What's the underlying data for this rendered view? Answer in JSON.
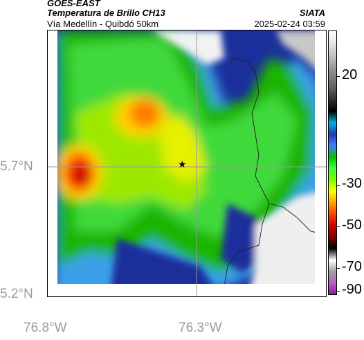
{
  "header": {
    "satellite": "GOES-EAST",
    "product": "Temperatura de Brillo CH13",
    "route": "Vía Medellín - Quibdó 50km",
    "agency": "SIATA",
    "datetime": "2025-02-24 03:59"
  },
  "axes": {
    "y_ticks": [
      "5.7°N",
      "5.2°N"
    ],
    "x_ticks": [
      "76.8°W",
      "76.3°W"
    ]
  },
  "colorbar": {
    "ticks": [
      "20",
      "-30",
      "-50",
      "-70",
      "-90"
    ],
    "stops": [
      "#ffffff",
      "#e8e8e8",
      "#c8c8c8",
      "#a0a0a0",
      "#808080",
      "#606060",
      "#303030",
      "#000000",
      "#00b0e0",
      "#1f3fb0",
      "#4080ff",
      "#00c000",
      "#40ff40",
      "#80ff00",
      "#ffff00",
      "#ffa000",
      "#ff4000",
      "#d00000",
      "#800000",
      "#000000",
      "#ffffff",
      "#a0a0a0",
      "#c060c0",
      "#8020a0"
    ]
  },
  "map": {
    "marker": "star-marker"
  }
}
